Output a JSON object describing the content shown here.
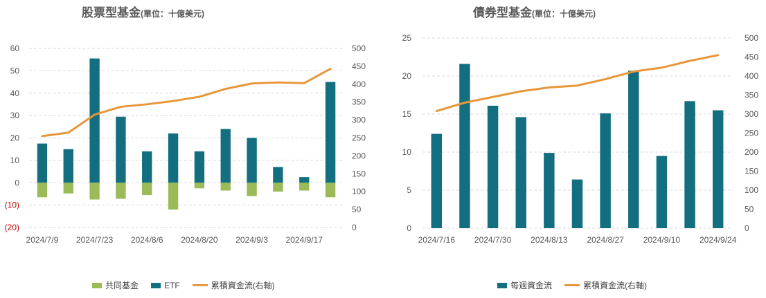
{
  "colors": {
    "bar": "#136E7F",
    "bar_neg": "#9BBB59",
    "line": "#E8963A",
    "grid": "#D9D9D9",
    "neg_label": "#C00000"
  },
  "left": {
    "title": "股票型基金",
    "unit": "(單位：十億美元)",
    "legend": [
      "共同基金",
      "ETF",
      "累積資金流(右軸)"
    ]
  },
  "right": {
    "title": "債券型基金",
    "unit": "(單位：十億美元)",
    "legend": [
      "每週資金流",
      "累積資金流(右軸)"
    ]
  },
  "chart_data": [
    {
      "type": "bar",
      "title": "股票型基金(單位：十億美元)",
      "categories": [
        "2024/7/9",
        "2024/7/16",
        "2024/7/23",
        "2024/7/30",
        "2024/8/6",
        "2024/8/13",
        "2024/8/20",
        "2024/8/27",
        "2024/9/3",
        "2024/9/10",
        "2024/9/17",
        "2024/9/24"
      ],
      "x_tick_labels": [
        "2024/7/9",
        "2024/7/23",
        "2024/8/6",
        "2024/8/20",
        "2024/9/3",
        "2024/9/17"
      ],
      "y_tick_labels": [
        "60",
        "50",
        "40",
        "30",
        "20",
        "10",
        "0",
        "(10)",
        "(20)"
      ],
      "y2_tick_labels": [
        "500",
        "450",
        "400",
        "350",
        "300",
        "250",
        "200",
        "150",
        "100",
        "50",
        "0"
      ],
      "series": [
        {
          "name": "共同基金",
          "type": "bar",
          "values": [
            -6.5,
            -4.8,
            -7.5,
            -7.2,
            -5.5,
            -12,
            -2.5,
            -3.5,
            -6,
            -4,
            -3.5,
            -6.5
          ]
        },
        {
          "name": "ETF",
          "type": "bar",
          "values": [
            17.5,
            15,
            55.5,
            29.5,
            14,
            22,
            14,
            24,
            20,
            7,
            2.5,
            45
          ]
        },
        {
          "name": "累積資金流(右軸)",
          "type": "line",
          "axis": "right",
          "values": [
            255,
            265,
            315,
            337,
            344,
            353,
            365,
            387,
            402,
            405,
            403,
            443
          ]
        }
      ],
      "ylim": [
        -20,
        60
      ],
      "y2lim": [
        0,
        500
      ],
      "grid": true,
      "legend_position": "bottom"
    },
    {
      "type": "bar",
      "title": "債券型基金(單位：十億美元)",
      "categories": [
        "2024/7/16",
        "2024/7/23",
        "2024/7/30",
        "2024/8/6",
        "2024/8/13",
        "2024/8/20",
        "2024/8/27",
        "2024/9/3",
        "2024/9/10",
        "2024/9/17",
        "2024/9/24"
      ],
      "x_tick_labels": [
        "2024/7/16",
        "2024/7/30",
        "2024/8/13",
        "2024/8/27",
        "2024/9/10",
        "2024/9/24"
      ],
      "y_tick_labels": [
        "25",
        "20",
        "15",
        "10",
        "5",
        "0"
      ],
      "y2_tick_labels": [
        "500",
        "450",
        "400",
        "350",
        "300",
        "250",
        "200",
        "150",
        "100",
        "50",
        "0"
      ],
      "series": [
        {
          "name": "每週資金流",
          "type": "bar",
          "values": [
            12.4,
            21.6,
            16.1,
            14.6,
            9.9,
            6.4,
            15.1,
            20.7,
            9.5,
            16.7,
            15.5
          ]
        },
        {
          "name": "累積資金流(右軸)",
          "type": "line",
          "axis": "right",
          "values": [
            308,
            330,
            345,
            360,
            370,
            375,
            392,
            412,
            422,
            440,
            455
          ]
        }
      ],
      "ylim": [
        0,
        25
      ],
      "y2lim": [
        0,
        500
      ],
      "grid": true,
      "legend_position": "bottom"
    }
  ]
}
